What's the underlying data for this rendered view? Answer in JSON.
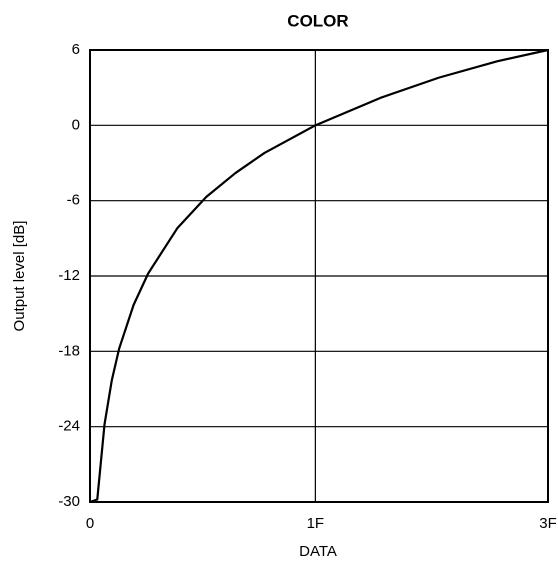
{
  "chart_data": {
    "type": "line",
    "title": "COLOR",
    "xlabel": "DATA",
    "ylabel": "Output level [dB]",
    "x": [
      0,
      1,
      2,
      3,
      4,
      6,
      8,
      12,
      16,
      20,
      24,
      31,
      40,
      48,
      56,
      63
    ],
    "series": [
      {
        "name": null,
        "color": "#000000",
        "values": [
          -30,
          -29.8,
          -23.8,
          -20.3,
          -17.8,
          -14.3,
          -11.8,
          -8.2,
          -5.7,
          -3.8,
          -2.2,
          0,
          2.2,
          3.8,
          5.1,
          6
        ]
      }
    ],
    "xlim": [
      0,
      63
    ],
    "xticks": [
      0,
      {
        "value": 31,
        "label": "1F"
      },
      {
        "value": 63,
        "label": "3F"
      }
    ],
    "ylim": [
      -30,
      6
    ],
    "yticks": [
      -30,
      -24,
      -18,
      -12,
      -6,
      0,
      6
    ],
    "grid": true
  }
}
